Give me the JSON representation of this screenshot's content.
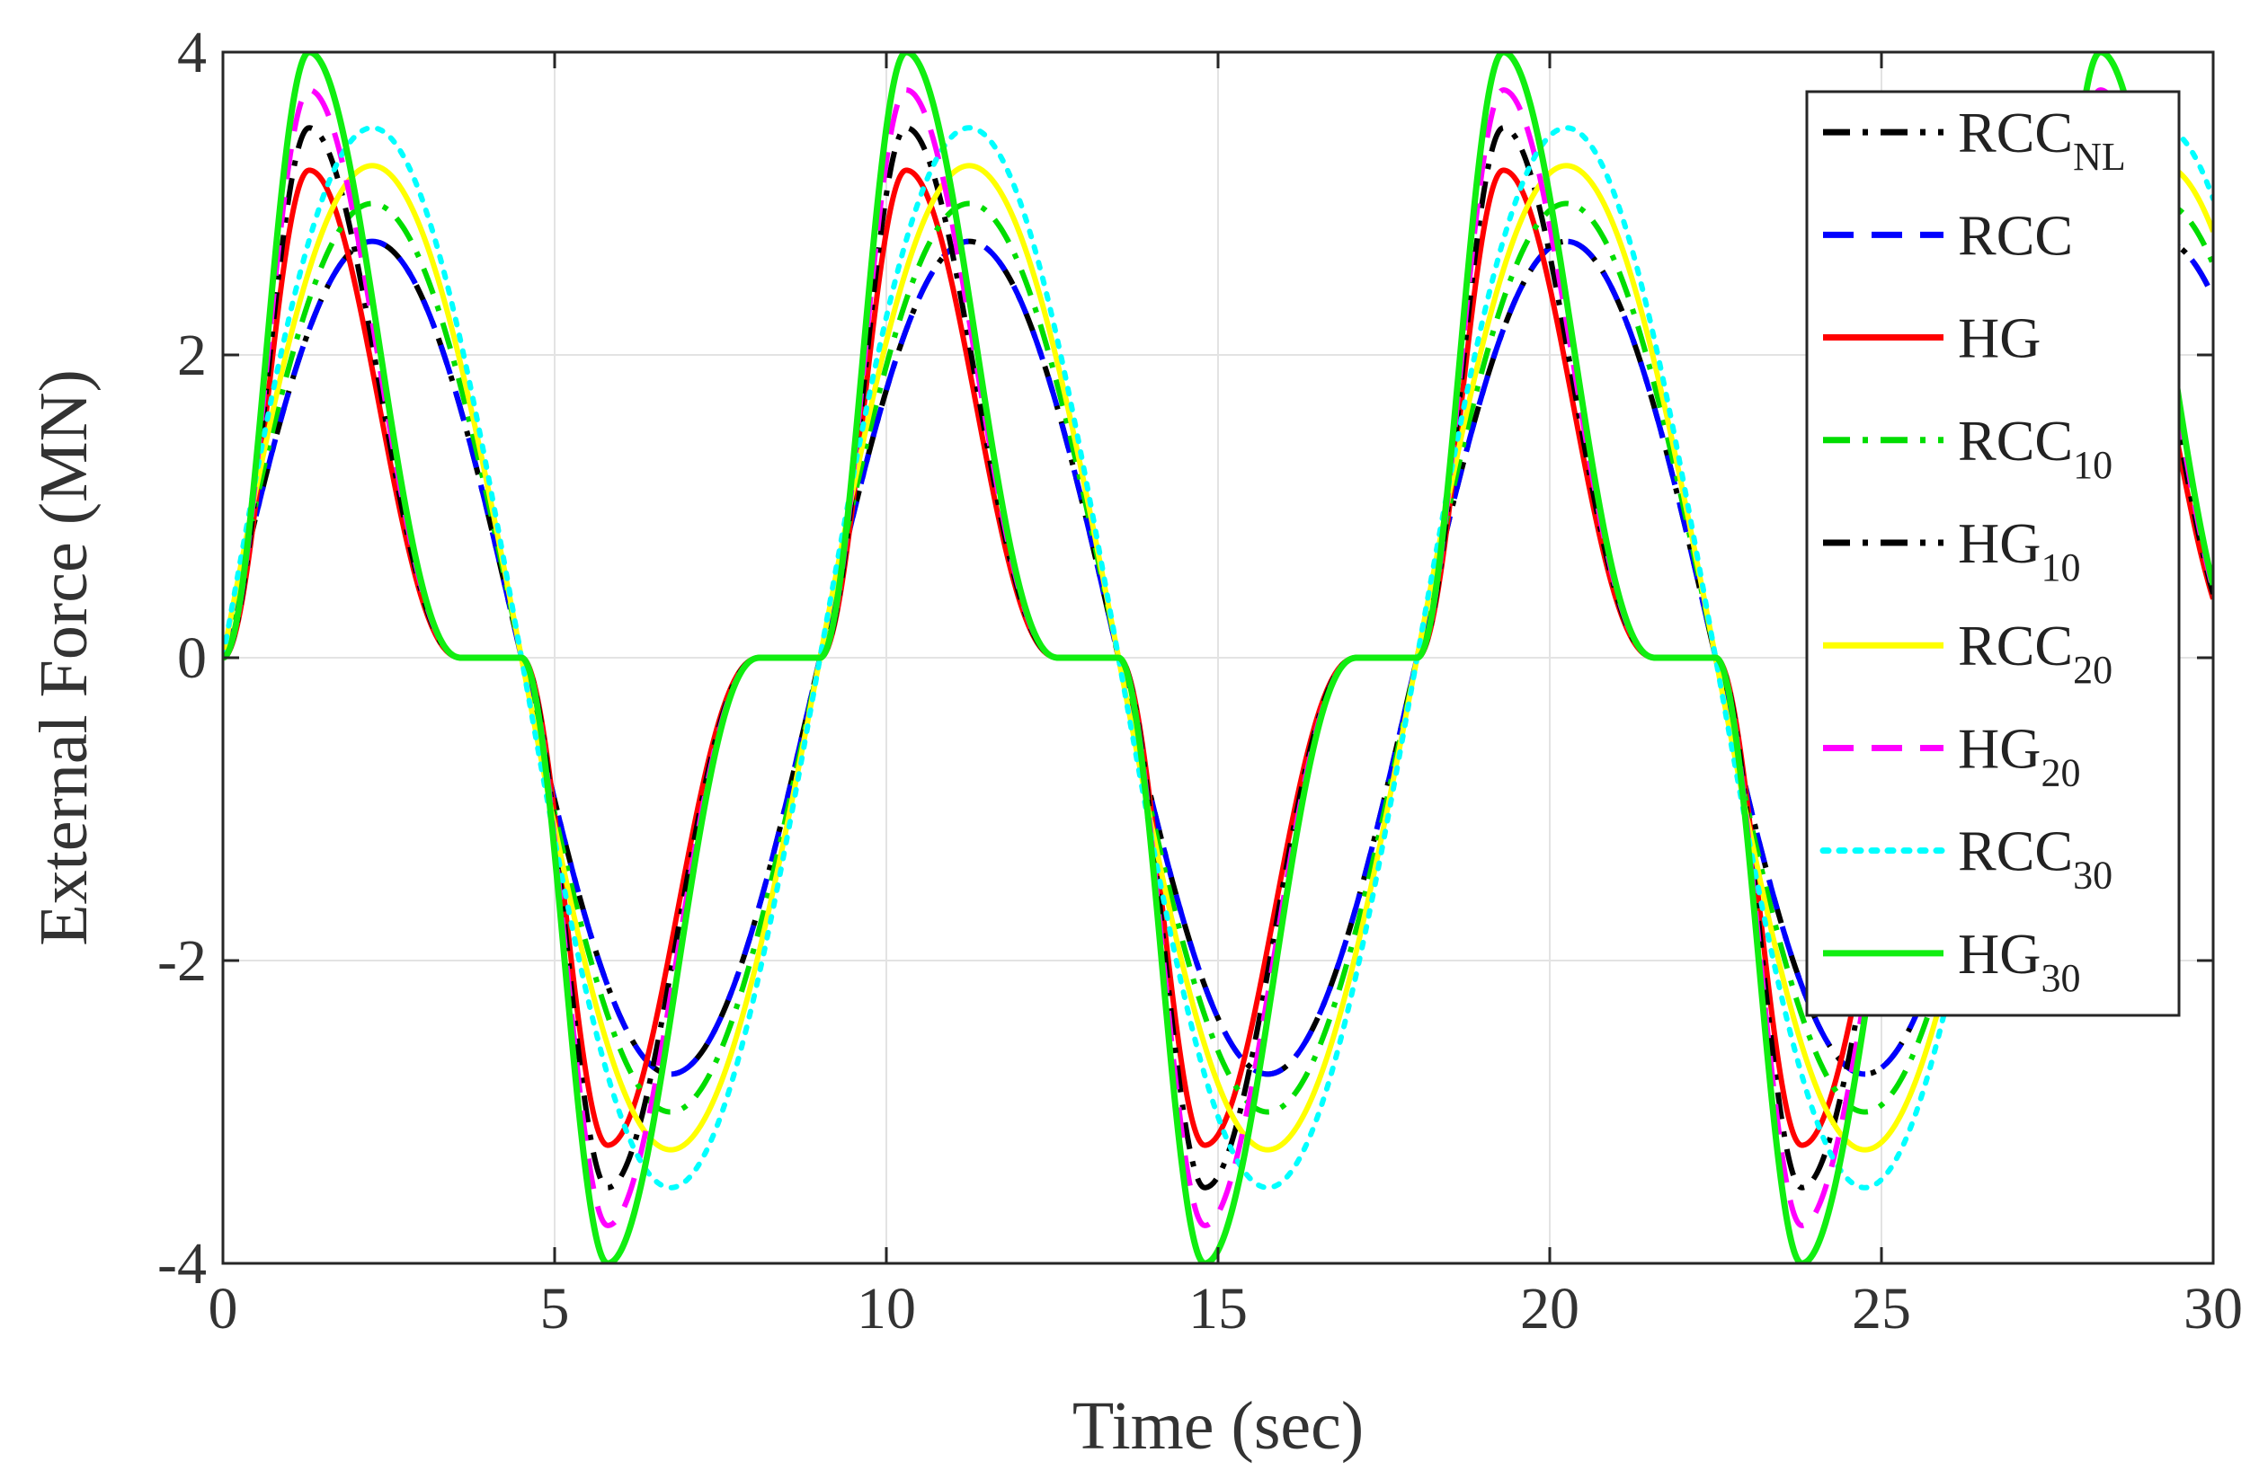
{
  "chart_data": {
    "type": "line",
    "title": "",
    "xlabel": "Time (sec)",
    "ylabel": "External Force (MN)",
    "xlim": [
      0,
      30
    ],
    "ylim": [
      -4,
      4
    ],
    "xticks": [
      0,
      5,
      10,
      15,
      20,
      25,
      30
    ],
    "yticks": [
      -4,
      -2,
      0,
      2,
      4
    ],
    "xtick_labels": [
      "0",
      "5",
      "10",
      "15",
      "20",
      "25",
      "30"
    ],
    "ytick_labels": [
      "-4",
      "-2",
      "0",
      "2",
      "4"
    ],
    "grid": true,
    "legend_position": "top-right",
    "period": 9.0,
    "series": [
      {
        "name": "RCC",
        "sub": "NL",
        "kind": "rcc",
        "amplitude": 2.75,
        "color": "#000000",
        "dash": "dashdot"
      },
      {
        "name": "RCC",
        "sub": "",
        "kind": "rcc",
        "amplitude": 2.75,
        "color": "#0000ff",
        "dash": "dash"
      },
      {
        "name": "HG",
        "sub": "",
        "kind": "hg",
        "amplitude": 3.22,
        "color": "#ff0000",
        "dash": "solid"
      },
      {
        "name": "RCC",
        "sub": "10",
        "kind": "rcc",
        "amplitude": 3.0,
        "color": "#00dd00",
        "dash": "dashdot"
      },
      {
        "name": "HG",
        "sub": "10",
        "kind": "hg",
        "amplitude": 3.5,
        "color": "#000000",
        "dash": "dashdot"
      },
      {
        "name": "RCC",
        "sub": "20",
        "kind": "rcc",
        "amplitude": 3.25,
        "color": "#ffff00",
        "dash": "solid"
      },
      {
        "name": "HG",
        "sub": "20",
        "kind": "hg",
        "amplitude": 3.75,
        "color": "#ff00ff",
        "dash": "dash"
      },
      {
        "name": "RCC",
        "sub": "30",
        "kind": "rcc",
        "amplitude": 3.5,
        "color": "#00ffff",
        "dash": "dot"
      },
      {
        "name": "HG",
        "sub": "30",
        "kind": "hg",
        "amplitude": 4.0,
        "color": "#11ee11",
        "dash": "solid"
      }
    ]
  }
}
